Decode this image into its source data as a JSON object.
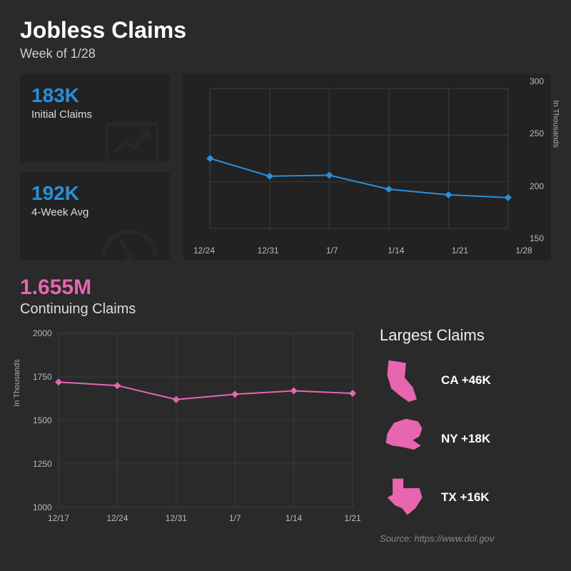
{
  "header": {
    "title": "Jobless Claims",
    "subtitle": "Week of 1/28"
  },
  "initial_claims": {
    "value": "183K",
    "label": "Initial Claims",
    "color": "#2a8fd8"
  },
  "weekly_avg": {
    "value": "192K",
    "label": "4-Week Avg",
    "color": "#2a8fd8"
  },
  "top_chart": {
    "type": "line",
    "line_color": "#2a8fd8",
    "marker": "diamond",
    "marker_size": 10,
    "line_width": 2,
    "background": "#222222",
    "grid_color": "#3a3a3a",
    "axis_label": "In Thousands",
    "x_labels": [
      "12/24",
      "12/31",
      "1/7",
      "1/14",
      "1/21",
      "1/28"
    ],
    "y_ticks": [
      150,
      200,
      250,
      300
    ],
    "ylim": [
      150,
      300
    ],
    "values": [
      225,
      206,
      207,
      192,
      186,
      183
    ]
  },
  "continuing": {
    "value": "1.655M",
    "label": "Continuing Claims",
    "color": "#e865b0"
  },
  "bottom_chart": {
    "type": "line",
    "line_color": "#e865b0",
    "marker": "diamond",
    "marker_size": 10,
    "line_width": 2,
    "background": "transparent",
    "grid_color": "#3a3a3a",
    "axis_label": "In Thousands",
    "x_labels": [
      "12/17",
      "12/24",
      "12/31",
      "1/7",
      "1/14",
      "1/21"
    ],
    "y_ticks": [
      1000,
      1250,
      1500,
      1750,
      2000
    ],
    "ylim": [
      1000,
      2000
    ],
    "values": [
      1720,
      1700,
      1620,
      1650,
      1670,
      1655
    ]
  },
  "largest_claims": {
    "title": "Largest Claims",
    "states": [
      {
        "code": "CA",
        "delta": "+46K",
        "shape": "ca"
      },
      {
        "code": "NY",
        "delta": "+18K",
        "shape": "ny"
      },
      {
        "code": "TX",
        "delta": "+16K",
        "shape": "tx"
      }
    ],
    "shape_color": "#e865b0"
  },
  "source": "Source: https://www.dol.gov"
}
